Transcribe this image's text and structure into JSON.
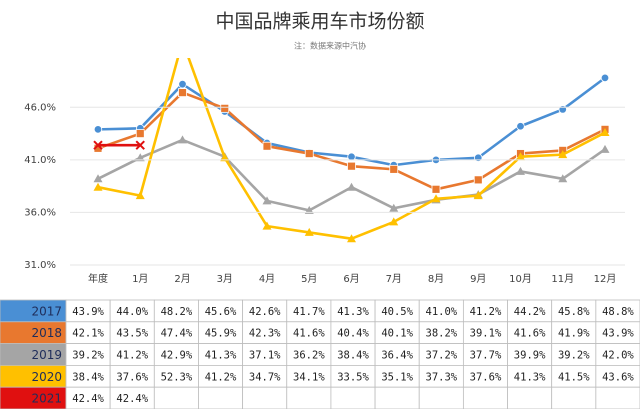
{
  "chart_data": {
    "type": "line",
    "title": "中国品牌乘用车市场份额",
    "subtitle": "注：数据来源中汽协",
    "categories": [
      "年度",
      "1月",
      "2月",
      "3月",
      "4月",
      "5月",
      "6月",
      "7月",
      "8月",
      "9月",
      "10月",
      "11月",
      "12月"
    ],
    "ylim": [
      31,
      50.5
    ],
    "yticks": [
      {
        "value": 31,
        "label": "31.0%"
      },
      {
        "value": 36,
        "label": "36.0%"
      },
      {
        "value": 41,
        "label": "41.0%"
      },
      {
        "value": 46,
        "label": "46.0%"
      }
    ],
    "grid": true,
    "series": [
      {
        "name": "2017",
        "color": "#4a8fd4",
        "marker": "circle",
        "values": [
          43.9,
          44.0,
          48.2,
          45.6,
          42.6,
          41.7,
          41.3,
          40.5,
          41.0,
          41.2,
          44.2,
          45.8,
          48.8
        ],
        "value_labels": [
          "43.9%",
          "44.0%",
          "48.2%",
          "45.6%",
          "42.6%",
          "41.7%",
          "41.3%",
          "40.5%",
          "41.0%",
          "41.2%",
          "44.2%",
          "45.8%",
          "48.8%"
        ]
      },
      {
        "name": "2018",
        "color": "#e8782f",
        "marker": "square",
        "values": [
          42.1,
          43.5,
          47.4,
          45.9,
          42.3,
          41.6,
          40.4,
          40.1,
          38.2,
          39.1,
          41.6,
          41.9,
          43.9
        ],
        "value_labels": [
          "42.1%",
          "43.5%",
          "47.4%",
          "45.9%",
          "42.3%",
          "41.6%",
          "40.4%",
          "40.1%",
          "38.2%",
          "39.1%",
          "41.6%",
          "41.9%",
          "43.9%"
        ]
      },
      {
        "name": "2019",
        "color": "#a5a5a5",
        "marker": "triangle",
        "values": [
          39.2,
          41.2,
          42.9,
          41.3,
          37.1,
          36.2,
          38.4,
          36.4,
          37.2,
          37.7,
          39.9,
          39.2,
          42.0
        ],
        "value_labels": [
          "39.2%",
          "41.2%",
          "42.9%",
          "41.3%",
          "37.1%",
          "36.2%",
          "38.4%",
          "36.4%",
          "37.2%",
          "37.7%",
          "39.9%",
          "39.2%",
          "42.0%"
        ]
      },
      {
        "name": "2020",
        "color": "#ffc000",
        "marker": "triangle",
        "values": [
          38.4,
          37.6,
          52.3,
          41.2,
          34.7,
          34.1,
          33.5,
          35.1,
          37.3,
          37.6,
          41.3,
          41.5,
          43.6
        ],
        "value_labels": [
          "38.4%",
          "37.6%",
          "52.3%",
          "41.2%",
          "34.7%",
          "34.1%",
          "33.5%",
          "35.1%",
          "37.3%",
          "37.6%",
          "41.3%",
          "41.5%",
          "43.6%"
        ]
      },
      {
        "name": "2021",
        "color": "#e01010",
        "marker": "x",
        "values": [
          42.4,
          42.4,
          null,
          null,
          null,
          null,
          null,
          null,
          null,
          null,
          null,
          null,
          null
        ],
        "value_labels": [
          "42.4%",
          "42.4%",
          null,
          null,
          null,
          null,
          null,
          null,
          null,
          null,
          null,
          null,
          null
        ]
      }
    ]
  }
}
